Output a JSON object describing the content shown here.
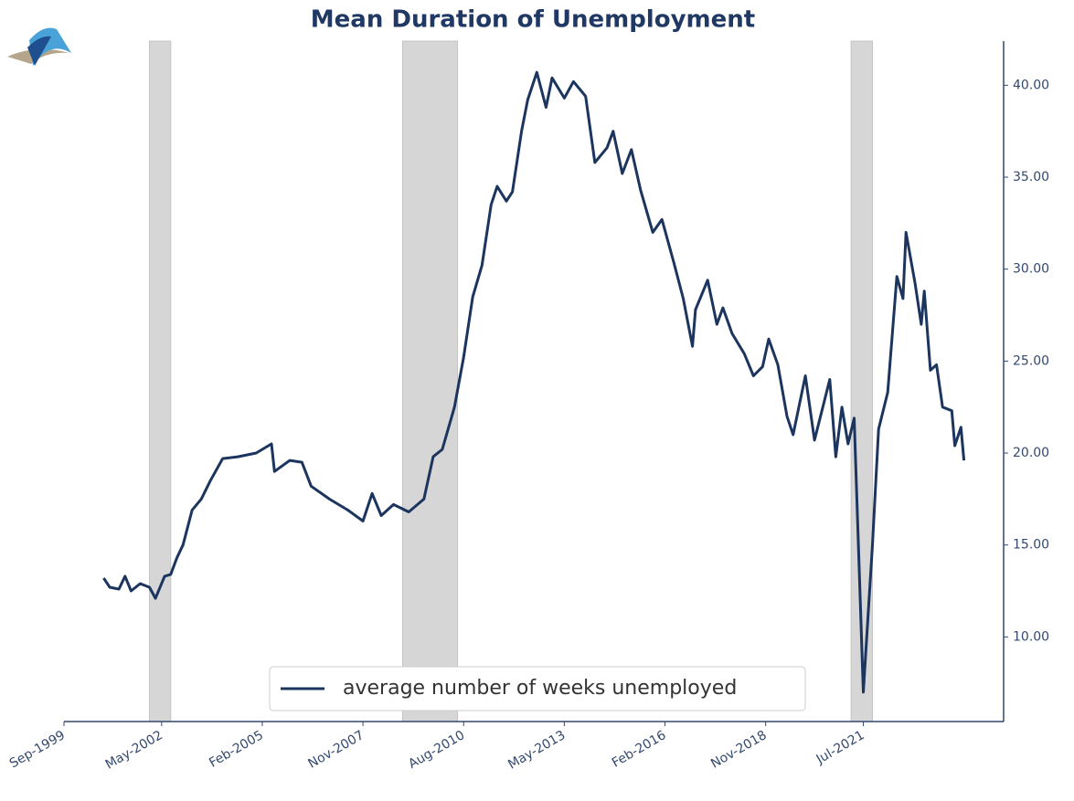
{
  "chart_data": {
    "type": "line",
    "title": "Mean Duration of Unemployment",
    "x": [
      "Oct-2000",
      "Dec-2000",
      "Mar-2001",
      "May-2001",
      "Jul-2001",
      "Oct-2001",
      "Jan-2002",
      "Mar-2002",
      "Jun-2002",
      "Aug-2002",
      "Oct-2002",
      "Dec-2002",
      "Mar-2003",
      "Jun-2003",
      "Sep-2003",
      "Jan-2004",
      "Jun-2004",
      "Dec-2004",
      "May-2005",
      "Jun-2005",
      "Nov-2005",
      "Mar-2006",
      "Jun-2006",
      "Dec-2006",
      "Jun-2007",
      "Nov-2007",
      "Feb-2008",
      "May-2008",
      "Sep-2008",
      "Feb-2009",
      "Jul-2009",
      "Oct-2009",
      "Jan-2010",
      "May-2010",
      "Aug-2010",
      "Nov-2010",
      "Feb-2011",
      "May-2011",
      "Jul-2011",
      "Oct-2011",
      "Dec-2011",
      "Mar-2012",
      "May-2012",
      "Aug-2012",
      "Nov-2012",
      "Jan-2013",
      "May-2013",
      "Aug-2013",
      "Dec-2013",
      "Mar-2014",
      "Jul-2014",
      "Sep-2014",
      "Dec-2014",
      "Mar-2015",
      "Jun-2015",
      "Oct-2015",
      "Jan-2016",
      "May-2016",
      "Aug-2016",
      "Nov-2016",
      "Dec-2016",
      "Apr-2017",
      "Jul-2017",
      "Sep-2017",
      "Dec-2017",
      "Apr-2018",
      "Jul-2018",
      "Oct-2018",
      "Dec-2018",
      "Mar-2019",
      "Jun-2019",
      "Aug-2019",
      "Dec-2019",
      "Mar-2020",
      "Aug-2020",
      "Oct-2020",
      "Dec-2020",
      "Feb-2021",
      "Apr-2021",
      "Jul-2021",
      "Oct-2021",
      "Dec-2021",
      "Mar-2022",
      "Jun-2022",
      "Aug-2022",
      "Sep-2022",
      "Dec-2022",
      "Feb-2023",
      "Mar-2023",
      "May-2023",
      "Jul-2023",
      "Sep-2023",
      "Dec-2023",
      "Jan-2024",
      "Mar-2024",
      "Apr-2024"
    ],
    "series": [
      {
        "name": "average number of weeks unemployed",
        "color": "#1c355e",
        "values": [
          13.2,
          12.7,
          12.6,
          13.3,
          12.5,
          12.9,
          12.7,
          12.1,
          13.3,
          13.4,
          14.3,
          15.0,
          16.9,
          17.5,
          18.5,
          19.7,
          19.8,
          20.0,
          20.5,
          19.0,
          19.6,
          19.5,
          18.2,
          17.5,
          16.9,
          16.3,
          17.8,
          16.6,
          17.2,
          16.8,
          17.5,
          19.8,
          20.2,
          22.5,
          25.2,
          28.5,
          30.2,
          33.5,
          34.5,
          33.7,
          34.2,
          37.5,
          39.2,
          40.7,
          38.8,
          40.4,
          39.3,
          40.2,
          39.4,
          35.8,
          36.6,
          37.5,
          35.2,
          36.5,
          34.3,
          32.0,
          32.7,
          30.3,
          28.4,
          25.8,
          27.8,
          29.4,
          27.0,
          27.9,
          26.5,
          25.4,
          24.2,
          24.7,
          26.2,
          24.8,
          22.0,
          21.0,
          24.2,
          20.7,
          24.0,
          19.8,
          22.5,
          20.5,
          21.9,
          7.0,
          15.0,
          21.3,
          23.3,
          29.6,
          28.4,
          32.0,
          29.2,
          27.0,
          28.8,
          24.5,
          24.8,
          22.5,
          22.3,
          20.4,
          21.4,
          19.6
        ]
      }
    ],
    "shaded_periods": [
      {
        "start": "Jan-2002",
        "end": "Aug-2002"
      },
      {
        "start": "Dec-2008",
        "end": "Jun-2010"
      },
      {
        "start": "Mar-2021",
        "end": "Oct-2021"
      }
    ],
    "xlim": [
      "Sep-1999",
      "May-2025"
    ],
    "xticks": [
      "Sep-1999",
      "May-2002",
      "Feb-2005",
      "Nov-2007",
      "Aug-2010",
      "May-2013",
      "Feb-2016",
      "Nov-2018",
      "Jul-2021"
    ],
    "ylim": [
      5.4,
      42.4
    ],
    "yticks": [
      {
        "value": 10,
        "label": "10.00"
      },
      {
        "value": 15,
        "label": "15.00"
      },
      {
        "value": 20,
        "label": "20.00"
      },
      {
        "value": 25,
        "label": "25.00"
      },
      {
        "value": 30,
        "label": "30.00"
      },
      {
        "value": 35,
        "label": "35.00"
      },
      {
        "value": 40,
        "label": "40.00"
      }
    ],
    "y_axis_side": "right",
    "legend": "lower center",
    "grid": false
  }
}
